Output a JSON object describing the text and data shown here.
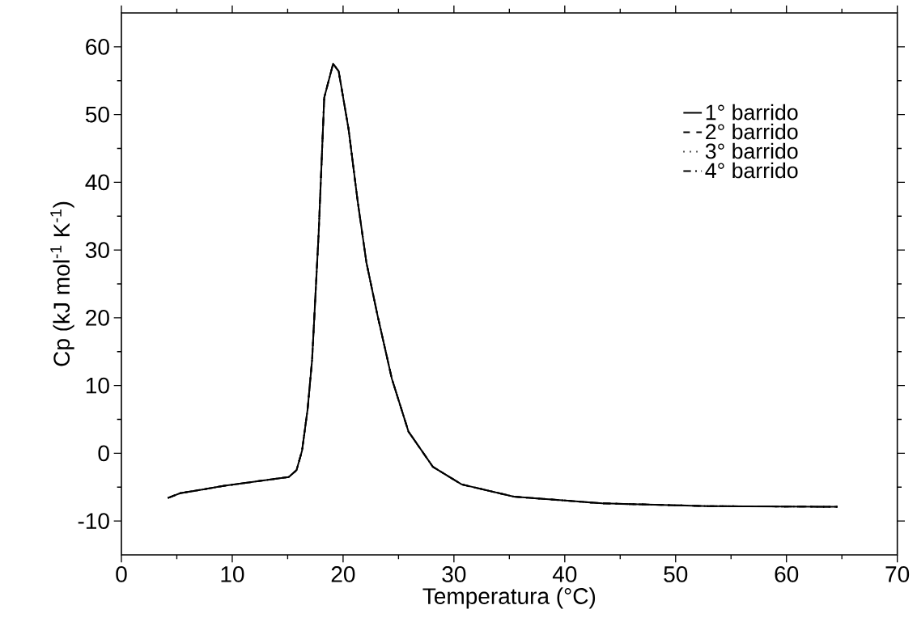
{
  "chart_data": {
    "type": "line",
    "xlabel": "Temperatura (°C)",
    "ylabel": "Cp (kJ mol$^{-1}$ K$^{-1}$)",
    "x": [
      4.2,
      5.3,
      9.3,
      15.1,
      15.8,
      16.3,
      16.8,
      17.2,
      17.5,
      17.8,
      18.1,
      18.3,
      19.1,
      19.6,
      20.5,
      21.3,
      22.1,
      23.1,
      24.4,
      25.9,
      28.1,
      30.7,
      35.4,
      43.4,
      52.9,
      64.6
    ],
    "series": [
      {
        "name": "1° barrido",
        "color": "#000000",
        "line_style": "solid",
        "values": [
          -6.6,
          -5.9,
          -4.8,
          -3.5,
          -2.5,
          0.4,
          6.5,
          13.7,
          23.1,
          32.6,
          44.5,
          52.5,
          57.5,
          56.4,
          47.8,
          37.4,
          28.2,
          20.4,
          11.0,
          3.2,
          -2.0,
          -4.6,
          -6.4,
          -7.4,
          -7.8,
          -7.9
        ]
      },
      {
        "name": "2° barrido",
        "color": "#000000",
        "line_style": "dashed",
        "values": [
          -6.6,
          -5.9,
          -4.8,
          -3.5,
          -2.5,
          0.4,
          6.5,
          13.7,
          23.1,
          32.6,
          44.5,
          52.5,
          57.5,
          56.4,
          47.8,
          37.4,
          28.2,
          20.4,
          11.0,
          3.2,
          -2.0,
          -4.6,
          -6.4,
          -7.4,
          -7.8,
          -7.9
        ]
      },
      {
        "name": "3° barrido",
        "color": "#000000",
        "line_style": "dotted",
        "values": [
          -6.6,
          -5.9,
          -4.8,
          -3.5,
          -2.5,
          0.4,
          6.5,
          13.7,
          23.1,
          32.6,
          44.5,
          52.5,
          57.5,
          56.4,
          47.8,
          37.4,
          28.2,
          20.4,
          11.0,
          3.2,
          -2.0,
          -4.6,
          -6.4,
          -7.4,
          -7.8,
          -7.9
        ]
      },
      {
        "name": "4° barrido",
        "color": "#000000",
        "line_style": "dashdot",
        "values": [
          -6.6,
          -5.9,
          -4.8,
          -3.5,
          -2.5,
          0.4,
          6.5,
          13.7,
          23.1,
          32.6,
          44.5,
          52.5,
          57.5,
          56.4,
          47.8,
          37.4,
          28.2,
          20.4,
          11.0,
          3.2,
          -2.0,
          -4.6,
          -6.4,
          -7.4,
          -7.8,
          -7.9
        ]
      }
    ],
    "xlim": [
      0,
      70
    ],
    "ylim": [
      -15,
      65
    ],
    "xticks": [
      0,
      10,
      20,
      30,
      40,
      50,
      60,
      70
    ],
    "yticks": [
      -10,
      0,
      10,
      20,
      30,
      40,
      50,
      60
    ],
    "grid": false,
    "legend": "top right",
    "marker": "none"
  }
}
